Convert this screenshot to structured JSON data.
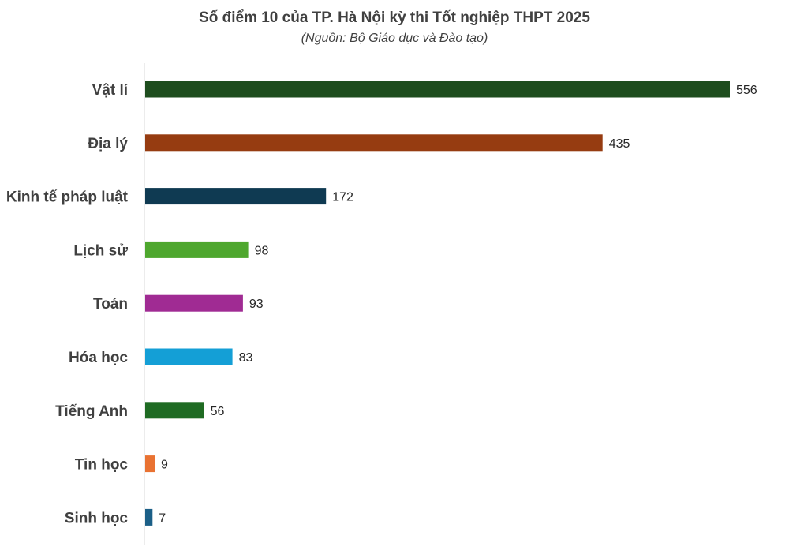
{
  "chart_data": {
    "type": "bar",
    "orientation": "horizontal",
    "title": "Số điểm 10 của TP. Hà Nội kỳ thi Tốt nghiệp THPT 2025",
    "subtitle": "(Nguồn: Bộ Giáo dục và Đào tạo)",
    "categories": [
      "Vật lí",
      "Địa lý",
      "Kinh tế pháp luật",
      "Lịch sử",
      "Toán",
      "Hóa học",
      "Tiếng Anh",
      "Tin học",
      "Sinh học"
    ],
    "values": [
      556,
      435,
      172,
      98,
      93,
      83,
      56,
      9,
      7
    ],
    "colors": [
      "#1e4d1e",
      "#963c11",
      "#0f3a52",
      "#4ea72e",
      "#a02b93",
      "#149fd6",
      "#1f6b23",
      "#e97232",
      "#1b5f87"
    ],
    "xlim": [
      0,
      556
    ],
    "grid": false,
    "legend": "none",
    "data_labels": true
  }
}
